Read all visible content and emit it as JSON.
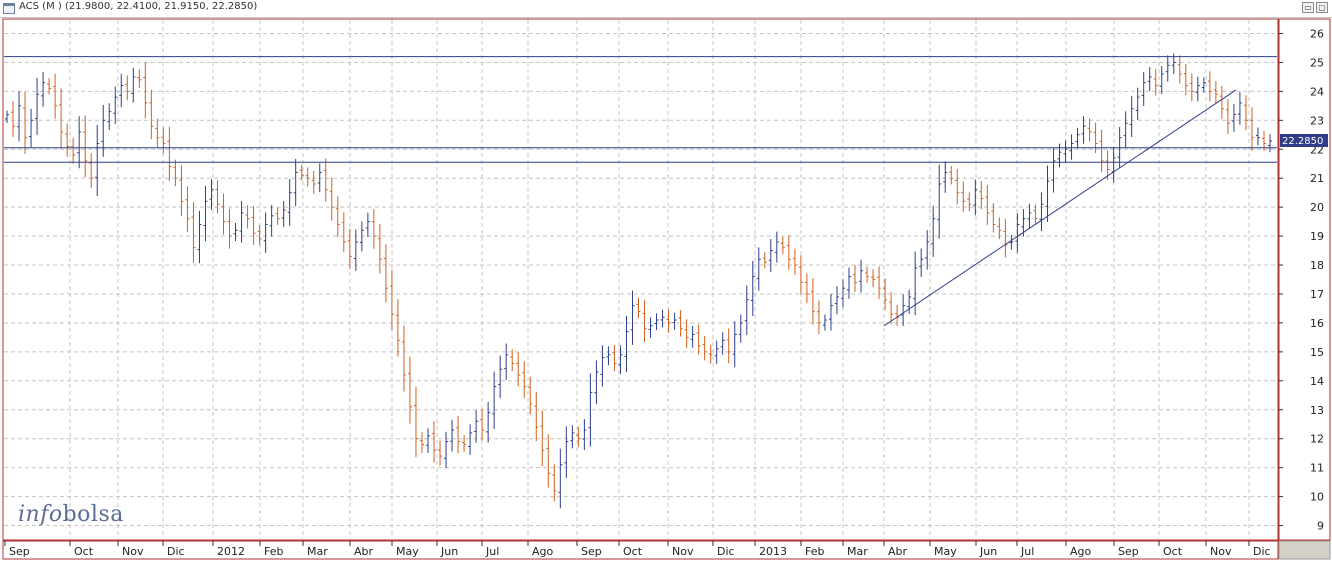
{
  "window": {
    "title": "ACS (M ) (21.9800, 22.4100, 21.9150, 22.2850)",
    "buttons": [
      "minimize",
      "maximize"
    ]
  },
  "logo": {
    "part1": "info",
    "part2": "bolsa"
  },
  "colors": {
    "up_bar": "#2f3d88",
    "down_bar": "#d0601e",
    "line": "#2f3d88",
    "grid": "#c4c4c4",
    "frame": "#b03030",
    "last_price_bg": "#2f3d88"
  },
  "chart_data": {
    "type": "line",
    "style": "ohlc-bars",
    "y_axis_position": "right",
    "ylim": [
      8.5,
      26.5
    ],
    "y_ticks": [
      9,
      10,
      11,
      12,
      13,
      14,
      15,
      16,
      17,
      18,
      19,
      20,
      21,
      22,
      23,
      24,
      25,
      26
    ],
    "x_tick_labels": [
      "Sep",
      "Oct",
      "Nov",
      "Dic",
      "2012",
      "Feb",
      "Mar",
      "Abr",
      "May",
      "Jun",
      "Jul",
      "Ago",
      "Sep",
      "Oct",
      "Nov",
      "Dic",
      "2013",
      "Feb",
      "Mar",
      "Abr",
      "May",
      "Jun",
      "Jul",
      "Ago",
      "Sep",
      "Oct",
      "Nov",
      "Dic"
    ],
    "grid": true,
    "last_price_label": "22.2850",
    "series": [
      {
        "values": [
          23.2,
          22.8,
          23.5,
          22.4,
          23.0,
          23.9,
          24.3,
          24.1,
          23.5,
          22.6,
          22.1,
          21.8,
          22.6,
          21.6,
          21.0,
          22.2,
          23.0,
          23.3,
          23.8,
          24.2,
          24.0,
          24.5,
          24.4,
          23.6,
          22.8,
          22.4,
          22.2,
          21.4,
          21.0,
          20.2,
          19.6,
          18.6,
          19.4,
          20.2,
          20.6,
          20.1,
          19.5,
          19.0,
          19.2,
          19.8,
          19.6,
          19.1,
          18.9,
          19.4,
          19.7,
          19.6,
          19.9,
          20.5,
          21.2,
          21.1,
          21.0,
          20.8,
          21.2,
          20.6,
          20.0,
          19.4,
          18.8,
          18.3,
          18.8,
          19.2,
          19.5,
          19.0,
          18.2,
          17.2,
          16.3,
          15.4,
          14.2,
          13.1,
          12.0,
          11.8,
          12.1,
          11.6,
          11.4,
          11.9,
          12.3,
          11.9,
          11.8,
          12.2,
          12.6,
          12.3,
          12.9,
          13.8,
          14.4,
          14.9,
          14.6,
          14.2,
          13.8,
          13.2,
          12.4,
          11.6,
          10.8,
          10.2,
          11.1,
          11.9,
          12.2,
          12.0,
          12.3,
          13.6,
          14.3,
          14.8,
          14.9,
          14.6,
          14.9,
          15.7,
          16.6,
          16.4,
          15.8,
          15.9,
          16.1,
          16.2,
          16.0,
          16.1,
          15.8,
          15.5,
          15.6,
          15.2,
          15.0,
          14.9,
          15.1,
          15.4,
          15.0,
          15.6,
          16.0,
          16.8,
          17.6,
          18.2,
          18.1,
          18.5,
          18.8,
          18.6,
          18.2,
          18.0,
          17.4,
          17.0,
          16.4,
          16.0,
          16.1,
          16.6,
          16.9,
          17.2,
          17.6,
          17.4,
          17.8,
          17.6,
          17.5,
          17.2,
          16.8,
          16.3,
          16.2,
          16.6,
          16.9,
          17.9,
          18.2,
          18.8,
          19.6,
          20.8,
          21.2,
          21.0,
          20.5,
          20.2,
          20.1,
          20.6,
          20.3,
          19.8,
          19.4,
          19.2,
          18.7,
          18.8,
          19.4,
          19.6,
          19.8,
          19.6,
          20.1,
          20.9,
          21.6,
          21.9,
          22.0,
          22.2,
          22.5,
          22.8,
          22.6,
          22.2,
          21.6,
          21.3,
          21.7,
          22.4,
          22.9,
          23.4,
          23.8,
          24.3,
          24.5,
          24.2,
          24.6,
          24.9,
          25.0,
          24.6,
          24.2,
          24.0,
          24.2,
          24.3,
          24.0,
          23.9,
          23.4,
          22.9,
          23.2,
          23.6,
          23.0,
          22.4,
          22.4,
          22.2,
          22.285
        ]
      }
    ]
  }
}
